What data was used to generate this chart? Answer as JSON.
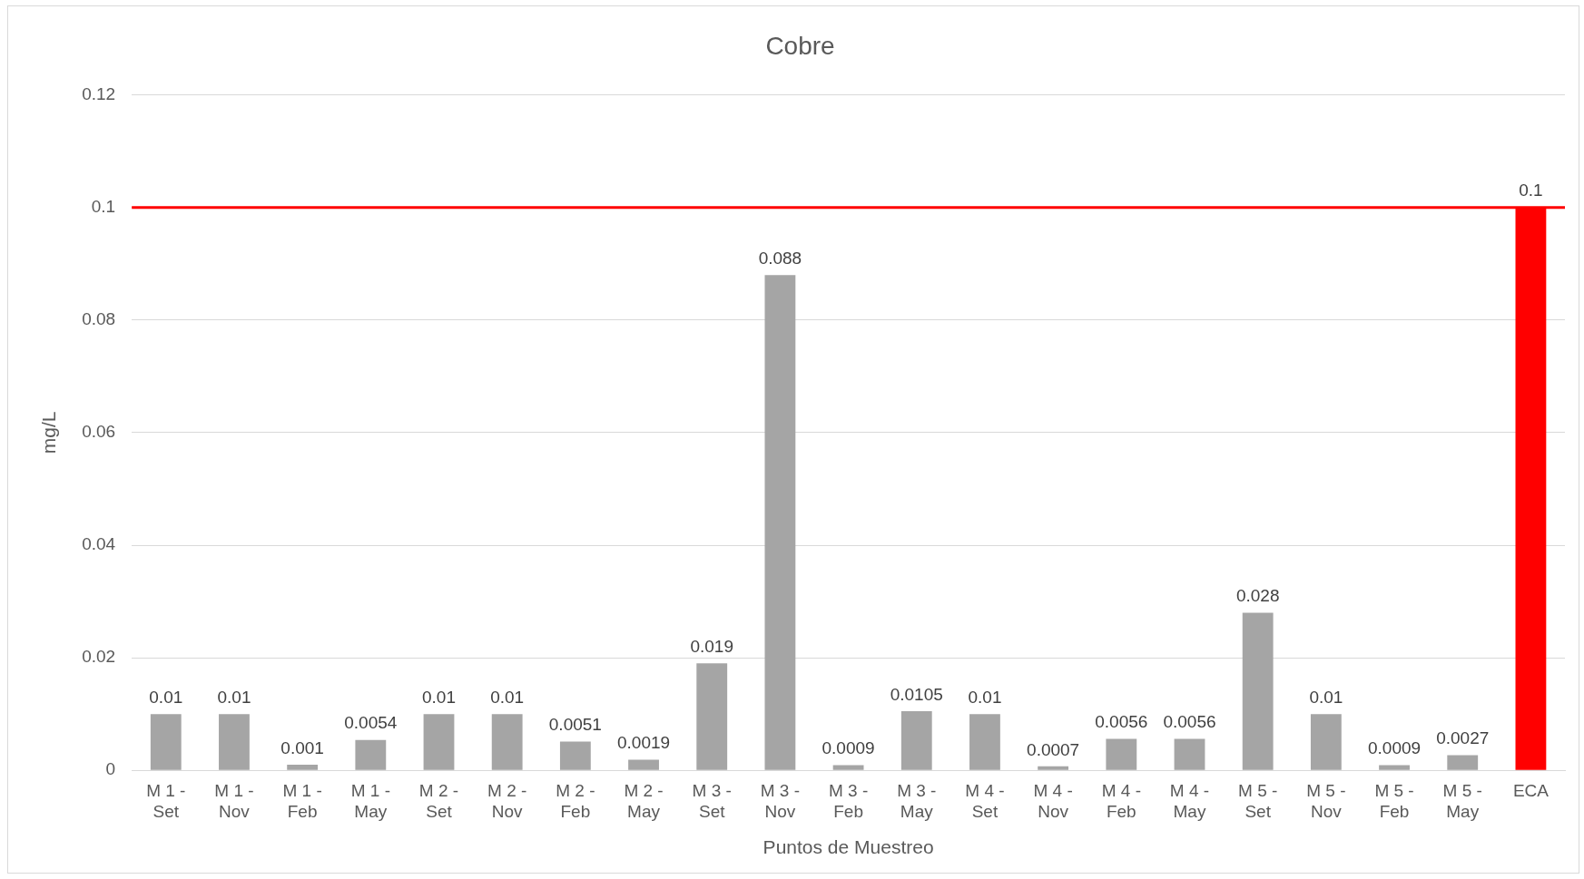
{
  "chart_data": {
    "type": "bar",
    "title": "Cobre",
    "xlabel": "Puntos de Muestreo",
    "ylabel": "mg/L",
    "categories": [
      "M 1 - Set",
      "M 1 - Nov",
      "M 1 - Feb",
      "M 1 - May",
      "M 2 - Set",
      "M 2 - Nov",
      "M 2 - Feb",
      "M 2 - May",
      "M 3 - Set",
      "M 3 - Nov",
      "M 3 - Feb",
      "M 3 - May",
      "M 4 - Set",
      "M 4 - Nov",
      "M 4 - Feb",
      "M 4 - May",
      "M 5 - Set",
      "M 5 - Nov",
      "M 5 - Feb",
      "M 5 - May",
      "ECA"
    ],
    "values": [
      0.01,
      0.01,
      0.001,
      0.0054,
      0.01,
      0.01,
      0.0051,
      0.0019,
      0.019,
      0.088,
      0.0009,
      0.0105,
      0.01,
      0.0007,
      0.0056,
      0.0056,
      0.028,
      0.01,
      0.0009,
      0.0027,
      0.1
    ],
    "colors": [
      "#a5a5a5",
      "#a5a5a5",
      "#a5a5a5",
      "#a5a5a5",
      "#a5a5a5",
      "#a5a5a5",
      "#a5a5a5",
      "#a5a5a5",
      "#a5a5a5",
      "#a5a5a5",
      "#a5a5a5",
      "#a5a5a5",
      "#a5a5a5",
      "#a5a5a5",
      "#a5a5a5",
      "#a5a5a5",
      "#a5a5a5",
      "#a5a5a5",
      "#a5a5a5",
      "#a5a5a5",
      "#ff0000"
    ],
    "ylim": [
      0,
      0.12
    ],
    "yticks": [
      0,
      0.02,
      0.04,
      0.06,
      0.08,
      0.1,
      0.12
    ],
    "ref_lines": [
      {
        "axis": "y",
        "value": 0.1,
        "color": "#ff0000"
      }
    ],
    "data_labels": true,
    "grid": "y",
    "legend": false
  }
}
